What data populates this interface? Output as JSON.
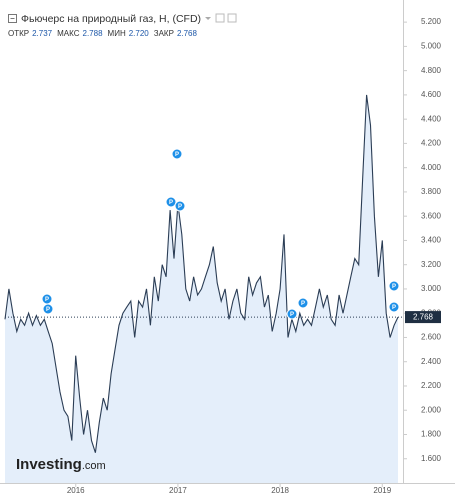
{
  "chart_data": {
    "type": "area",
    "title": "Фьючерс на природный газ, Н, (CFD)",
    "stats": [
      {
        "name": "ОТКР",
        "value": 2.737
      },
      {
        "name": "МАКС",
        "value": 2.788
      },
      {
        "name": "МИН",
        "value": 2.72,
        "label": "2.720"
      },
      {
        "name": "ЗАКР",
        "value": 2.768
      }
    ],
    "watermark": "Investing",
    "watermark_suffix": ".com",
    "markers": [
      "P",
      "P",
      "P",
      "P",
      "P",
      "P",
      "P",
      "P",
      "P"
    ],
    "categories": [
      null,
      null,
      null,
      null,
      null,
      null,
      null,
      null,
      null,
      null,
      null,
      null,
      null,
      null,
      null,
      null,
      null,
      null,
      "2016",
      null,
      null,
      null,
      null,
      null,
      null,
      null,
      null,
      null,
      null,
      null,
      null,
      null,
      null,
      null,
      null,
      null,
      null,
      null,
      null,
      null,
      null,
      null,
      null,
      null,
      "2017",
      null,
      null,
      null,
      null,
      null,
      null,
      null,
      null,
      null,
      null,
      null,
      null,
      null,
      null,
      null,
      null,
      null,
      null,
      null,
      null,
      null,
      null,
      null,
      null,
      null,
      "2018",
      null,
      null,
      null,
      null,
      null,
      null,
      null,
      null,
      null,
      null,
      null,
      null,
      null,
      null,
      null,
      null,
      null,
      null,
      null,
      null,
      null,
      null,
      null,
      null,
      null,
      "2019",
      null,
      null,
      null,
      null
    ],
    "series": [
      {
        "name": "Фьючерс на природный газ",
        "color": "#2b3d55",
        "values": [
          2.75,
          3.0,
          2.8,
          2.65,
          2.75,
          2.7,
          2.8,
          2.7,
          2.78,
          2.7,
          2.75,
          2.65,
          2.55,
          2.35,
          2.15,
          2.0,
          1.95,
          1.75,
          2.45,
          2.1,
          1.8,
          2.0,
          1.75,
          1.65,
          1.9,
          2.1,
          2.0,
          2.3,
          2.5,
          2.7,
          2.8,
          2.85,
          2.9,
          2.6,
          2.9,
          2.85,
          3.0,
          2.7,
          3.1,
          2.9,
          3.2,
          3.1,
          3.65,
          3.25,
          3.7,
          3.45,
          3.0,
          2.9,
          3.1,
          2.95,
          3.0,
          3.1,
          3.2,
          3.35,
          3.05,
          2.9,
          3.0,
          2.75,
          2.9,
          3.0,
          2.8,
          2.75,
          3.1,
          2.95,
          3.05,
          3.1,
          2.85,
          2.95,
          2.65,
          2.8,
          3.0,
          3.45,
          2.6,
          2.75,
          2.65,
          2.8,
          2.7,
          2.75,
          2.7,
          2.85,
          3.0,
          2.85,
          2.95,
          2.75,
          2.7,
          2.95,
          2.8,
          2.95,
          3.1,
          3.25,
          3.2,
          3.9,
          4.6,
          4.35,
          3.6,
          3.1,
          3.4,
          2.8,
          2.6,
          2.7,
          2.768
        ]
      }
    ],
    "fill_color": "#e4eefa",
    "ylim": [
      1.4,
      5.3
    ],
    "yticks": [
      {
        "value": 1.6,
        "label": "1.600"
      },
      {
        "value": 1.8,
        "label": "1.800"
      },
      {
        "value": 2.0,
        "label": "2.000"
      },
      {
        "value": 2.2,
        "label": "2.200"
      },
      {
        "value": 2.4,
        "label": "2.400"
      },
      {
        "value": 2.6,
        "label": "2.600"
      },
      {
        "value": 2.8,
        "label": "2.800"
      },
      {
        "value": 3.0,
        "label": "3.000"
      },
      {
        "value": 3.2,
        "label": "3.200"
      },
      {
        "value": 3.4,
        "label": "3.400"
      },
      {
        "value": 3.6,
        "label": "3.600"
      },
      {
        "value": 3.8,
        "label": "3.800"
      },
      {
        "value": 4.0,
        "label": "4.000"
      },
      {
        "value": 4.2,
        "label": "4.200"
      },
      {
        "value": 4.4,
        "label": "4.400"
      },
      {
        "value": 4.6,
        "label": "4.600"
      },
      {
        "value": 4.8,
        "label": "4.800"
      },
      {
        "value": 5.0,
        "label": "5.000"
      },
      {
        "value": 5.2,
        "label": "5.200"
      }
    ],
    "grid": false
  }
}
